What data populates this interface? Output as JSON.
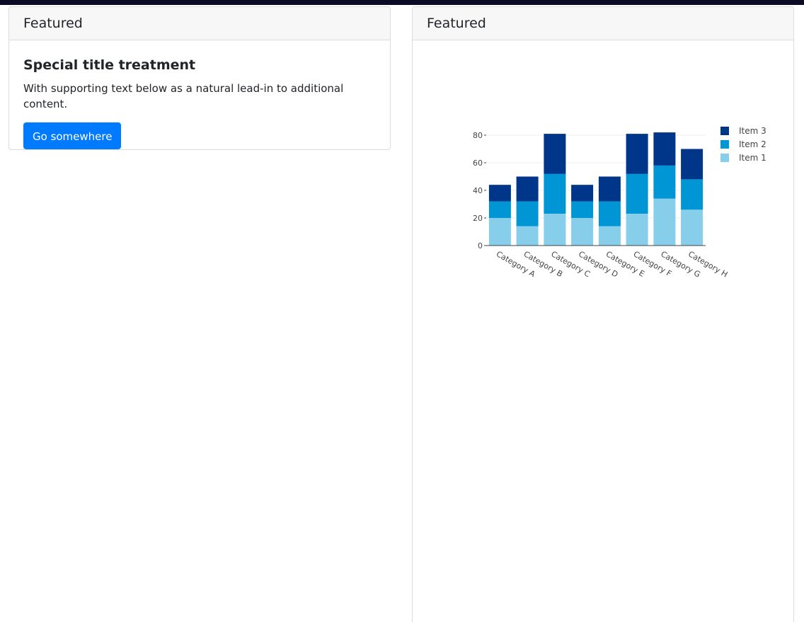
{
  "left_card": {
    "header": "Featured",
    "title": "Special title treatment",
    "text": "With supporting text below as a natural lead-in to additional content.",
    "button_label": "Go somewhere"
  },
  "right_card": {
    "header": "Featured"
  },
  "colors": {
    "item1": "#87ceeb",
    "item2": "#0096d6",
    "item3": "#00368a",
    "button": "#007bff"
  },
  "chart_data": {
    "type": "bar",
    "stacked": true,
    "title": "",
    "xlabel": "",
    "ylabel": "",
    "ylim": [
      0,
      85
    ],
    "yticks": [
      0,
      20,
      40,
      60,
      80
    ],
    "grid": true,
    "legend_position": "top-right",
    "categories": [
      "Category A",
      "Category B",
      "Category C",
      "Category D",
      "Category E",
      "Category F",
      "Category G",
      "Category H"
    ],
    "series": [
      {
        "name": "Item 1",
        "values": [
          20,
          14,
          23,
          20,
          14,
          23,
          34,
          26
        ]
      },
      {
        "name": "Item 2",
        "values": [
          12,
          18,
          29,
          12,
          18,
          29,
          24,
          22
        ]
      },
      {
        "name": "Item 3",
        "values": [
          12,
          18,
          29,
          12,
          18,
          29,
          24,
          22
        ]
      }
    ]
  }
}
